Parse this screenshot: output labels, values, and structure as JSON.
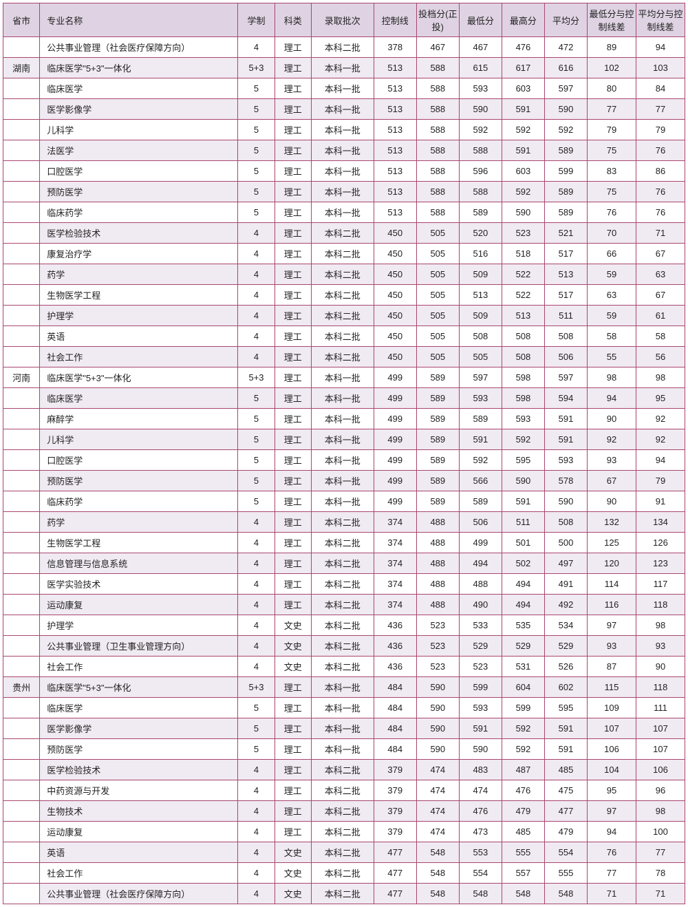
{
  "table": {
    "columns": [
      "省市",
      "专业名称",
      "学制",
      "科类",
      "录取批次",
      "控制线",
      "投档分(正投)",
      "最低分",
      "最高分",
      "平均分",
      "最低分与控制线差",
      "平均分与控制线差"
    ],
    "column_classes": [
      "col-province",
      "col-major",
      "col-duration",
      "col-category",
      "col-batch",
      "col-num",
      "col-num",
      "col-num",
      "col-num",
      "col-num",
      "col-diff",
      "col-diff"
    ],
    "header_bg": "#dfd3e3",
    "border_color": "#a8456e",
    "shaded_bg": "#f0eaf2",
    "font_size": 13,
    "rows": [
      {
        "shaded": false,
        "cells": [
          "",
          "公共事业管理（社会医疗保障方向）",
          "4",
          "理工",
          "本科二批",
          "378",
          "467",
          "467",
          "476",
          "472",
          "89",
          "94"
        ]
      },
      {
        "shaded": true,
        "province_shaded": true,
        "cells": [
          "湖南",
          "临床医学\"5+3\"一体化",
          "5+3",
          "理工",
          "本科一批",
          "513",
          "588",
          "615",
          "617",
          "616",
          "102",
          "103"
        ]
      },
      {
        "shaded": false,
        "cells": [
          "",
          "临床医学",
          "5",
          "理工",
          "本科一批",
          "513",
          "588",
          "593",
          "603",
          "597",
          "80",
          "84"
        ]
      },
      {
        "shaded": true,
        "cells": [
          "",
          "医学影像学",
          "5",
          "理工",
          "本科一批",
          "513",
          "588",
          "590",
          "591",
          "590",
          "77",
          "77"
        ]
      },
      {
        "shaded": false,
        "cells": [
          "",
          "儿科学",
          "5",
          "理工",
          "本科一批",
          "513",
          "588",
          "592",
          "592",
          "592",
          "79",
          "79"
        ]
      },
      {
        "shaded": true,
        "cells": [
          "",
          "法医学",
          "5",
          "理工",
          "本科一批",
          "513",
          "588",
          "588",
          "591",
          "589",
          "75",
          "76"
        ]
      },
      {
        "shaded": false,
        "cells": [
          "",
          "口腔医学",
          "5",
          "理工",
          "本科一批",
          "513",
          "588",
          "596",
          "603",
          "599",
          "83",
          "86"
        ]
      },
      {
        "shaded": true,
        "cells": [
          "",
          "预防医学",
          "5",
          "理工",
          "本科一批",
          "513",
          "588",
          "588",
          "592",
          "589",
          "75",
          "76"
        ]
      },
      {
        "shaded": false,
        "cells": [
          "",
          "临床药学",
          "5",
          "理工",
          "本科一批",
          "513",
          "588",
          "589",
          "590",
          "589",
          "76",
          "76"
        ]
      },
      {
        "shaded": true,
        "cells": [
          "",
          "医学检验技术",
          "4",
          "理工",
          "本科二批",
          "450",
          "505",
          "520",
          "523",
          "521",
          "70",
          "71"
        ]
      },
      {
        "shaded": false,
        "cells": [
          "",
          "康复治疗学",
          "4",
          "理工",
          "本科二批",
          "450",
          "505",
          "516",
          "518",
          "517",
          "66",
          "67"
        ]
      },
      {
        "shaded": true,
        "cells": [
          "",
          "药学",
          "4",
          "理工",
          "本科二批",
          "450",
          "505",
          "509",
          "522",
          "513",
          "59",
          "63"
        ]
      },
      {
        "shaded": false,
        "cells": [
          "",
          "生物医学工程",
          "4",
          "理工",
          "本科二批",
          "450",
          "505",
          "513",
          "522",
          "517",
          "63",
          "67"
        ]
      },
      {
        "shaded": true,
        "cells": [
          "",
          "护理学",
          "4",
          "理工",
          "本科二批",
          "450",
          "505",
          "509",
          "513",
          "511",
          "59",
          "61"
        ]
      },
      {
        "shaded": false,
        "cells": [
          "",
          "英语",
          "4",
          "理工",
          "本科二批",
          "450",
          "505",
          "508",
          "508",
          "508",
          "58",
          "58"
        ]
      },
      {
        "shaded": true,
        "cells": [
          "",
          "社会工作",
          "4",
          "理工",
          "本科二批",
          "450",
          "505",
          "505",
          "508",
          "506",
          "55",
          "56"
        ]
      },
      {
        "shaded": false,
        "cells": [
          "河南",
          "临床医学\"5+3\"一体化",
          "5+3",
          "理工",
          "本科一批",
          "499",
          "589",
          "597",
          "598",
          "597",
          "98",
          "98"
        ]
      },
      {
        "shaded": true,
        "cells": [
          "",
          "临床医学",
          "5",
          "理工",
          "本科一批",
          "499",
          "589",
          "593",
          "598",
          "594",
          "94",
          "95"
        ]
      },
      {
        "shaded": false,
        "cells": [
          "",
          "麻醉学",
          "5",
          "理工",
          "本科一批",
          "499",
          "589",
          "589",
          "593",
          "591",
          "90",
          "92"
        ]
      },
      {
        "shaded": true,
        "cells": [
          "",
          "儿科学",
          "5",
          "理工",
          "本科一批",
          "499",
          "589",
          "591",
          "592",
          "591",
          "92",
          "92"
        ]
      },
      {
        "shaded": false,
        "cells": [
          "",
          "口腔医学",
          "5",
          "理工",
          "本科一批",
          "499",
          "589",
          "592",
          "595",
          "593",
          "93",
          "94"
        ]
      },
      {
        "shaded": true,
        "cells": [
          "",
          "预防医学",
          "5",
          "理工",
          "本科一批",
          "499",
          "589",
          "566",
          "590",
          "578",
          "67",
          "79"
        ]
      },
      {
        "shaded": false,
        "cells": [
          "",
          "临床药学",
          "5",
          "理工",
          "本科一批",
          "499",
          "589",
          "589",
          "591",
          "590",
          "90",
          "91"
        ]
      },
      {
        "shaded": true,
        "cells": [
          "",
          "药学",
          "4",
          "理工",
          "本科二批",
          "374",
          "488",
          "506",
          "511",
          "508",
          "132",
          "134"
        ]
      },
      {
        "shaded": false,
        "cells": [
          "",
          "生物医学工程",
          "4",
          "理工",
          "本科二批",
          "374",
          "488",
          "499",
          "501",
          "500",
          "125",
          "126"
        ]
      },
      {
        "shaded": true,
        "cells": [
          "",
          "信息管理与信息系统",
          "4",
          "理工",
          "本科二批",
          "374",
          "488",
          "494",
          "502",
          "497",
          "120",
          "123"
        ]
      },
      {
        "shaded": false,
        "cells": [
          "",
          "医学实验技术",
          "4",
          "理工",
          "本科二批",
          "374",
          "488",
          "488",
          "494",
          "491",
          "114",
          "117"
        ]
      },
      {
        "shaded": true,
        "cells": [
          "",
          "运动康复",
          "4",
          "理工",
          "本科二批",
          "374",
          "488",
          "490",
          "494",
          "492",
          "116",
          "118"
        ]
      },
      {
        "shaded": false,
        "cells": [
          "",
          "护理学",
          "4",
          "文史",
          "本科二批",
          "436",
          "523",
          "533",
          "535",
          "534",
          "97",
          "98"
        ]
      },
      {
        "shaded": true,
        "cells": [
          "",
          "公共事业管理（卫生事业管理方向）",
          "4",
          "文史",
          "本科二批",
          "436",
          "523",
          "529",
          "529",
          "529",
          "93",
          "93"
        ]
      },
      {
        "shaded": false,
        "cells": [
          "",
          "社会工作",
          "4",
          "文史",
          "本科二批",
          "436",
          "523",
          "523",
          "531",
          "526",
          "87",
          "90"
        ]
      },
      {
        "shaded": true,
        "province_shaded": true,
        "cells": [
          "贵州",
          "临床医学\"5+3\"一体化",
          "5+3",
          "理工",
          "本科一批",
          "484",
          "590",
          "599",
          "604",
          "602",
          "115",
          "118"
        ]
      },
      {
        "shaded": false,
        "cells": [
          "",
          "临床医学",
          "5",
          "理工",
          "本科一批",
          "484",
          "590",
          "593",
          "599",
          "595",
          "109",
          "111"
        ]
      },
      {
        "shaded": true,
        "cells": [
          "",
          "医学影像学",
          "5",
          "理工",
          "本科一批",
          "484",
          "590",
          "591",
          "592",
          "591",
          "107",
          "107"
        ]
      },
      {
        "shaded": false,
        "cells": [
          "",
          "预防医学",
          "5",
          "理工",
          "本科一批",
          "484",
          "590",
          "590",
          "592",
          "591",
          "106",
          "107"
        ]
      },
      {
        "shaded": true,
        "cells": [
          "",
          "医学检验技术",
          "4",
          "理工",
          "本科二批",
          "379",
          "474",
          "483",
          "487",
          "485",
          "104",
          "106"
        ]
      },
      {
        "shaded": false,
        "cells": [
          "",
          "中药资源与开发",
          "4",
          "理工",
          "本科二批",
          "379",
          "474",
          "474",
          "476",
          "475",
          "95",
          "96"
        ]
      },
      {
        "shaded": true,
        "cells": [
          "",
          "生物技术",
          "4",
          "理工",
          "本科二批",
          "379",
          "474",
          "476",
          "479",
          "477",
          "97",
          "98"
        ]
      },
      {
        "shaded": false,
        "cells": [
          "",
          "运动康复",
          "4",
          "理工",
          "本科二批",
          "379",
          "474",
          "473",
          "485",
          "479",
          "94",
          "100"
        ]
      },
      {
        "shaded": true,
        "cells": [
          "",
          "英语",
          "4",
          "文史",
          "本科二批",
          "477",
          "548",
          "553",
          "555",
          "554",
          "76",
          "77"
        ]
      },
      {
        "shaded": false,
        "cells": [
          "",
          "社会工作",
          "4",
          "文史",
          "本科二批",
          "477",
          "548",
          "554",
          "557",
          "555",
          "77",
          "78"
        ]
      },
      {
        "shaded": true,
        "cells": [
          "",
          "公共事业管理（社会医疗保障方向）",
          "4",
          "文史",
          "本科二批",
          "477",
          "548",
          "548",
          "548",
          "548",
          "71",
          "71"
        ]
      }
    ]
  }
}
